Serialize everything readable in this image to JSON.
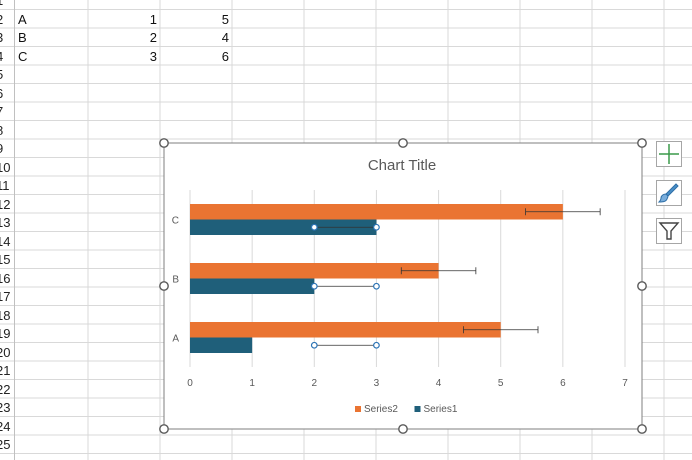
{
  "row_numbers": [
    "1",
    "2",
    "3",
    "4",
    "5",
    "6",
    "7",
    "8",
    "9",
    "10",
    "11",
    "12",
    "13",
    "14",
    "15",
    "16",
    "17",
    "18",
    "19",
    "20",
    "21",
    "22",
    "23",
    "24",
    "25"
  ],
  "sheet_rows": [
    {
      "label": "A",
      "v1": "1",
      "v2": "5"
    },
    {
      "label": "B",
      "v1": "2",
      "v2": "4"
    },
    {
      "label": "C",
      "v1": "3",
      "v2": "6"
    }
  ],
  "chart_buttons": {
    "elements": "plus-icon",
    "styles": "paintbrush-icon",
    "filters": "funnel-icon"
  },
  "chart_data": {
    "type": "bar",
    "orientation": "horizontal",
    "title": "Chart Title",
    "categories": [
      "A",
      "B",
      "C"
    ],
    "series": [
      {
        "name": "Series1",
        "values": [
          1,
          2,
          3
        ],
        "color": "#1f5f7a",
        "error_bars": [
          [
            2,
            3
          ],
          [
            2,
            3
          ],
          [
            2,
            3
          ]
        ]
      },
      {
        "name": "Series2",
        "values": [
          5,
          4,
          6
        ],
        "color": "#ea7432",
        "error_bars": [
          [
            4.4,
            5.6
          ],
          [
            3.4,
            4.6
          ],
          [
            5.4,
            6.6
          ]
        ]
      }
    ],
    "xlim": [
      0,
      7
    ],
    "x_ticks": [
      "0",
      "1",
      "2",
      "3",
      "4",
      "5",
      "6",
      "7"
    ],
    "grid": true,
    "legend": "bottom"
  },
  "colors": {
    "grid": "#d9d9d9",
    "chart_border": "#7f7f7f",
    "handle": "#595959",
    "text": "#595959",
    "selection": "#2e75b6"
  }
}
